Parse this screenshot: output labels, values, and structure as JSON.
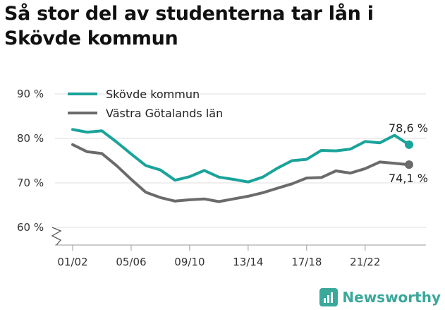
{
  "title": "Så stor del av studenterna tar lån i Skövde kommun",
  "brand": {
    "name": "Newsworthy",
    "icon": "newsworthy-logo-icon",
    "color": "#3aa89a"
  },
  "chart_data": {
    "type": "line",
    "title": "Så stor del av studenterna tar lån i Skövde kommun",
    "xlabel": "",
    "ylabel": "",
    "ylim": [
      60,
      90
    ],
    "y_ticks": [
      60,
      70,
      80,
      90
    ],
    "y_tick_labels": [
      "60 %",
      "70 %",
      "80 %",
      "90 %"
    ],
    "y_axis_break": true,
    "x": [
      "01/02",
      "02/03",
      "03/04",
      "04/05",
      "05/06",
      "06/07",
      "07/08",
      "08/09",
      "09/10",
      "10/11",
      "11/12",
      "12/13",
      "13/14",
      "14/15",
      "15/16",
      "16/17",
      "17/18",
      "18/19",
      "19/20",
      "20/21",
      "21/22",
      "22/23",
      "23/24",
      "24/25"
    ],
    "x_tick_labels": [
      "01/02",
      "05/06",
      "09/10",
      "13/14",
      "17/18",
      "21/22"
    ],
    "grid": true,
    "legend_position": "top-left",
    "series": [
      {
        "name": "Skövde kommun",
        "color": "#1aa39a",
        "values": [
          82.0,
          81.4,
          81.7,
          79.2,
          76.5,
          73.9,
          72.9,
          70.6,
          71.4,
          72.8,
          71.3,
          70.8,
          70.2,
          71.3,
          73.3,
          75.0,
          75.3,
          77.3,
          77.2,
          77.6,
          79.3,
          79.0,
          80.7,
          78.6
        ],
        "end_label": "78,6 %"
      },
      {
        "name": "Västra Götalands län",
        "color": "#6b6b6b",
        "values": [
          78.6,
          77.0,
          76.6,
          73.9,
          70.8,
          67.9,
          66.7,
          65.9,
          66.2,
          66.4,
          65.8,
          66.4,
          67.0,
          67.8,
          68.8,
          69.8,
          71.1,
          71.2,
          72.7,
          72.2,
          73.2,
          74.7,
          74.4,
          74.1
        ],
        "end_label": "74,1 %"
      }
    ]
  }
}
